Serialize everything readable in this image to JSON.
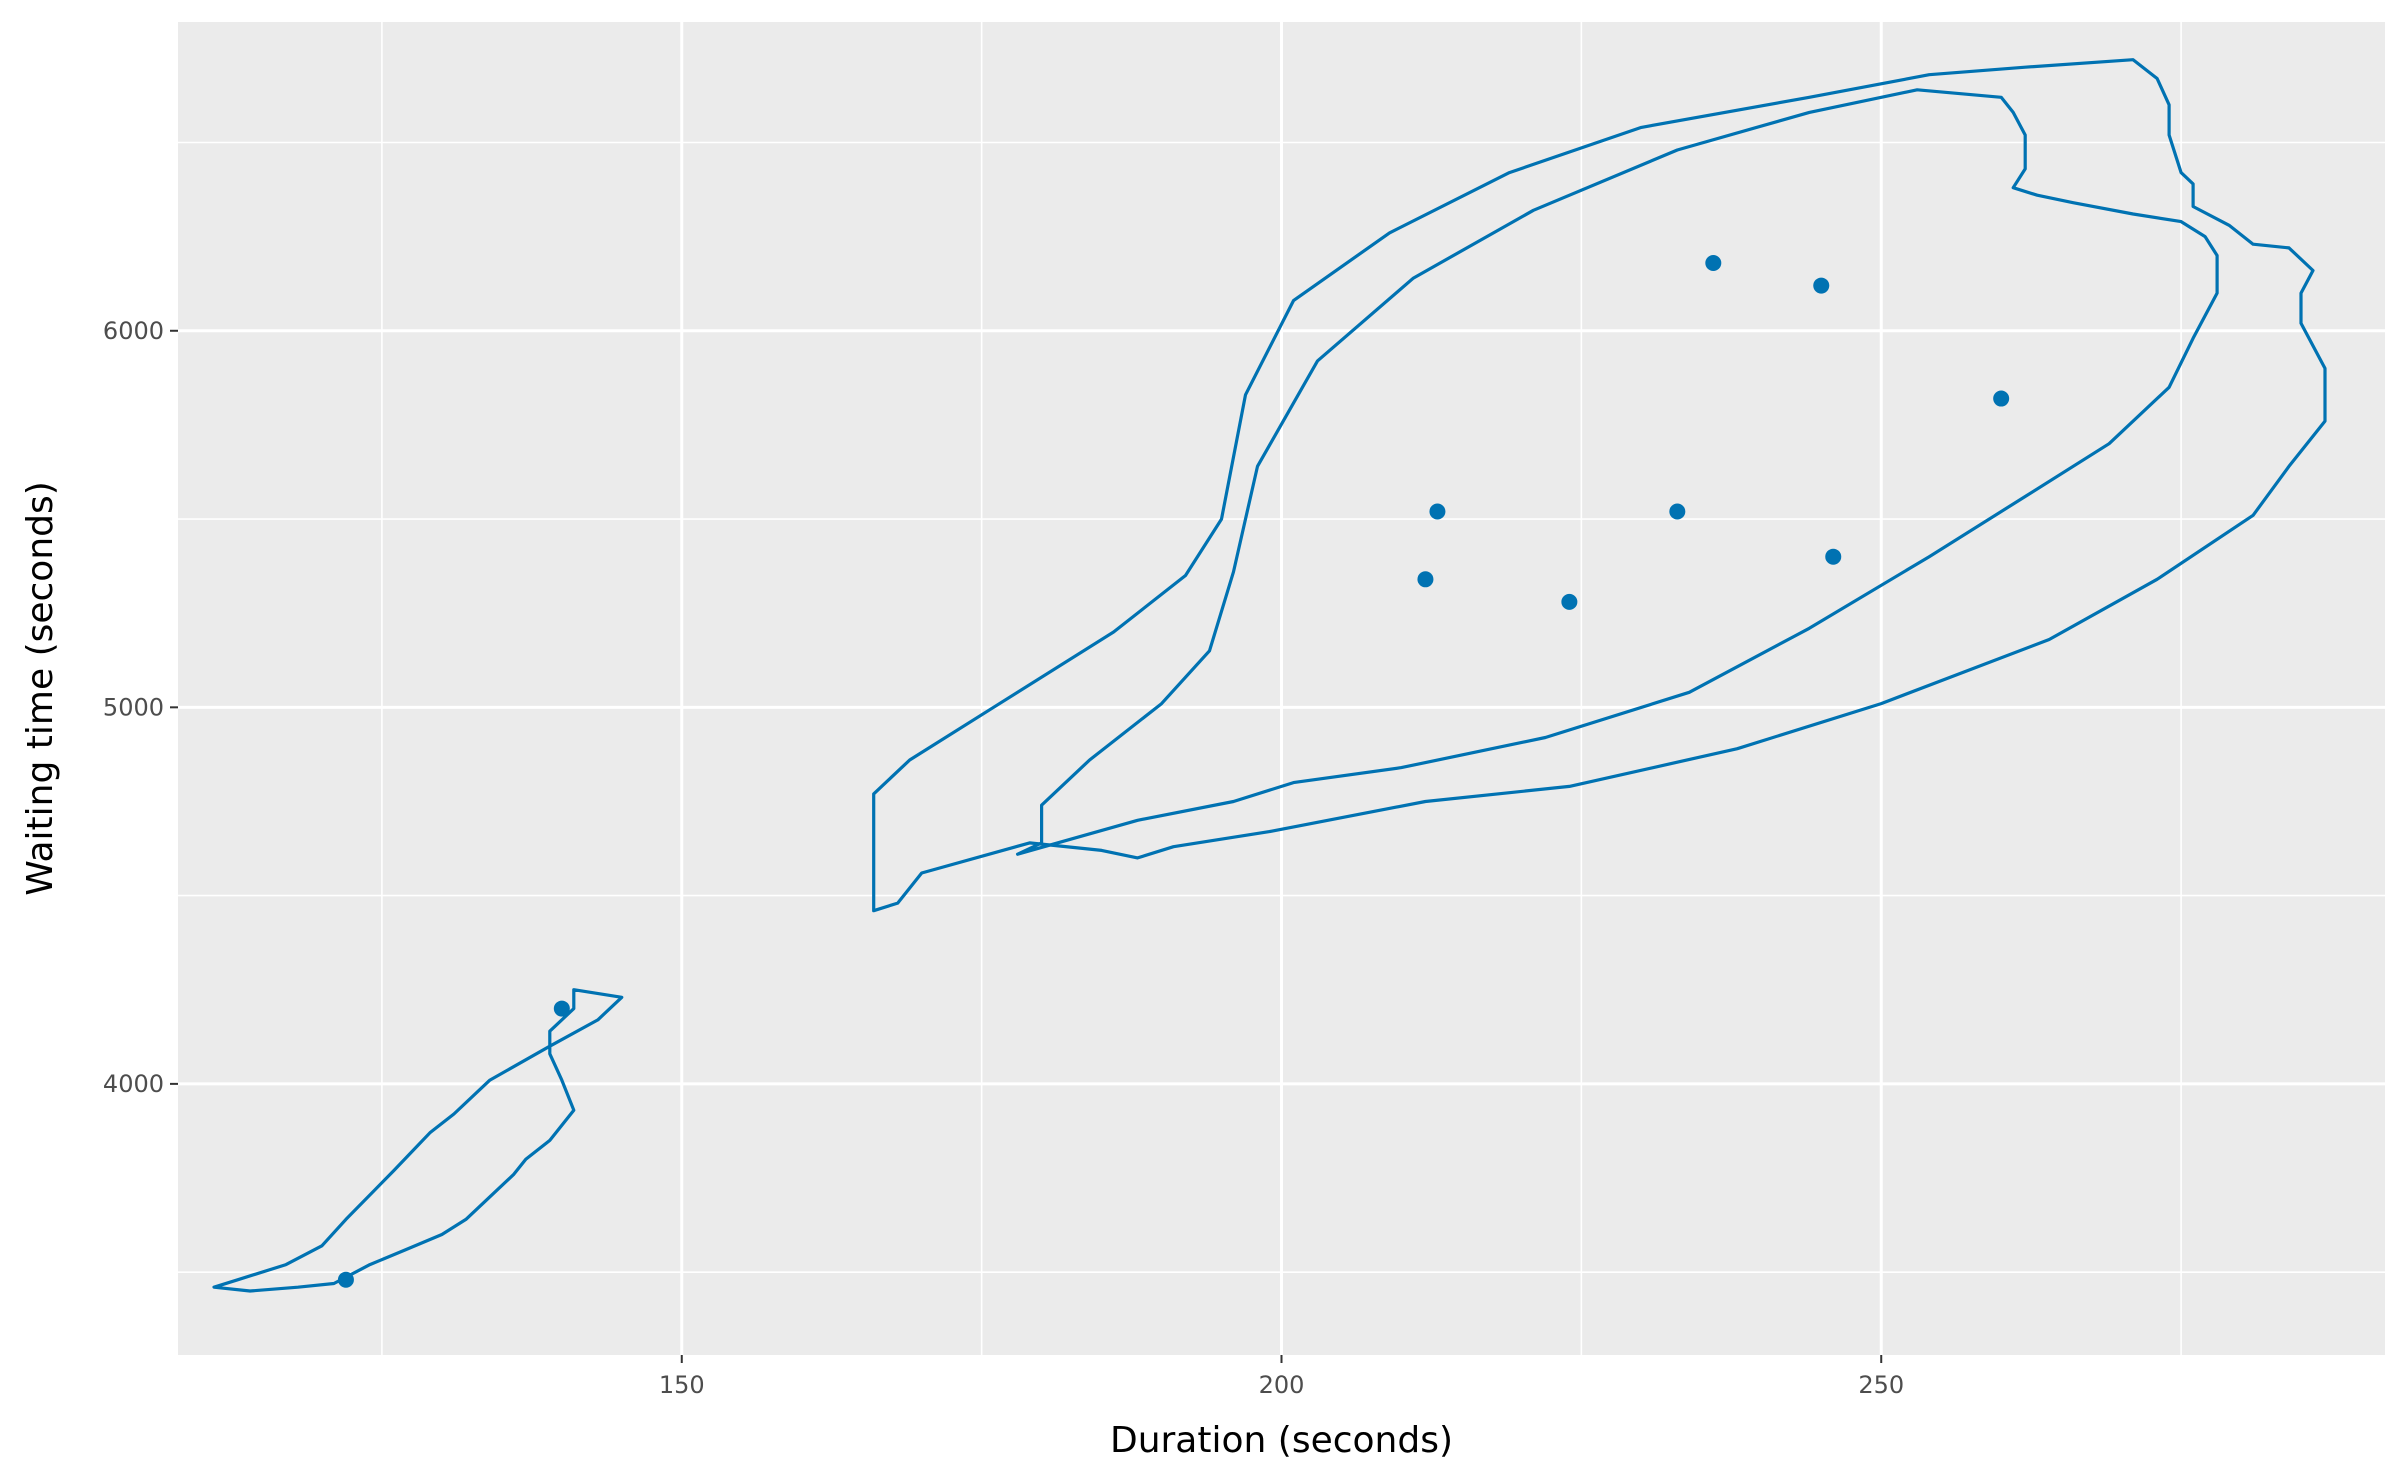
{
  "chart_data": {
    "type": "scatter",
    "subtype": "2d-density-contour",
    "xlabel": "Duration (seconds)",
    "ylabel": "Waiting time (seconds)",
    "xlim": [
      108,
      292
    ],
    "ylim": [
      3280,
      6820
    ],
    "x_ticks": [
      150,
      200,
      250
    ],
    "y_ticks": [
      4000,
      5000,
      6000
    ],
    "x_minor": [
      125,
      175,
      225,
      275
    ],
    "y_minor": [
      3500,
      4500,
      5500,
      6500
    ],
    "grid": true,
    "panel_color": "#ebebeb",
    "accent_color": "#0072b2",
    "points": [
      {
        "x": 122,
        "y": 3480
      },
      {
        "x": 140,
        "y": 4200
      },
      {
        "x": 212,
        "y": 5340
      },
      {
        "x": 213,
        "y": 5520
      },
      {
        "x": 224,
        "y": 5280
      },
      {
        "x": 233,
        "y": 5520
      },
      {
        "x": 236,
        "y": 6180
      },
      {
        "x": 245,
        "y": 6120
      },
      {
        "x": 246,
        "y": 5400
      },
      {
        "x": 260,
        "y": 5820
      }
    ],
    "contours": [
      [
        [
          141,
          4250
        ],
        [
          145,
          4230
        ],
        [
          143,
          4170
        ],
        [
          139,
          4100
        ],
        [
          134,
          4010
        ],
        [
          131,
          3920
        ],
        [
          129,
          3870
        ],
        [
          126,
          3770
        ],
        [
          122,
          3640
        ],
        [
          120,
          3570
        ],
        [
          117,
          3520
        ],
        [
          113,
          3480
        ],
        [
          111,
          3460
        ],
        [
          114,
          3450
        ],
        [
          118,
          3460
        ],
        [
          121,
          3470
        ],
        [
          124,
          3520
        ],
        [
          127,
          3560
        ],
        [
          130,
          3600
        ],
        [
          132,
          3640
        ],
        [
          134,
          3700
        ],
        [
          136,
          3760
        ],
        [
          137,
          3800
        ],
        [
          139,
          3850
        ],
        [
          141,
          3930
        ],
        [
          140,
          4010
        ],
        [
          139,
          4080
        ],
        [
          139,
          4140
        ],
        [
          141,
          4200
        ],
        [
          141,
          4250
        ]
      ],
      [
        [
          166,
          4460
        ],
        [
          168,
          4480
        ],
        [
          170,
          4560
        ],
        [
          179,
          4640
        ],
        [
          185,
          4620
        ],
        [
          188,
          4600
        ],
        [
          191,
          4630
        ],
        [
          199,
          4670
        ],
        [
          212,
          4750
        ],
        [
          224,
          4790
        ],
        [
          238,
          4890
        ],
        [
          250,
          5010
        ],
        [
          264,
          5180
        ],
        [
          273,
          5340
        ],
        [
          281,
          5510
        ],
        [
          284,
          5640
        ],
        [
          287,
          5760
        ],
        [
          287,
          5900
        ],
        [
          285,
          6020
        ],
        [
          285,
          6100
        ],
        [
          286,
          6160
        ],
        [
          284,
          6220
        ],
        [
          281,
          6230
        ],
        [
          279,
          6280
        ],
        [
          276,
          6330
        ],
        [
          276,
          6390
        ],
        [
          275,
          6420
        ],
        [
          274,
          6520
        ],
        [
          274,
          6600
        ],
        [
          273,
          6670
        ],
        [
          271,
          6720
        ],
        [
          262,
          6700
        ],
        [
          254,
          6680
        ],
        [
          244,
          6620
        ],
        [
          230,
          6540
        ],
        [
          219,
          6420
        ],
        [
          209,
          6260
        ],
        [
          201,
          6080
        ],
        [
          197,
          5830
        ],
        [
          195,
          5500
        ],
        [
          192,
          5350
        ],
        [
          186,
          5200
        ],
        [
          176,
          5000
        ],
        [
          169,
          4860
        ],
        [
          166,
          4770
        ],
        [
          166,
          4600
        ],
        [
          166,
          4460
        ]
      ],
      [
        [
          180,
          4640
        ],
        [
          178,
          4610
        ],
        [
          188,
          4700
        ],
        [
          196,
          4750
        ],
        [
          201,
          4800
        ],
        [
          210,
          4840
        ],
        [
          222,
          4920
        ],
        [
          234,
          5040
        ],
        [
          244,
          5210
        ],
        [
          254,
          5400
        ],
        [
          262,
          5560
        ],
        [
          269,
          5700
        ],
        [
          274,
          5850
        ],
        [
          276,
          5980
        ],
        [
          278,
          6100
        ],
        [
          278,
          6200
        ],
        [
          277,
          6250
        ],
        [
          275,
          6290
        ],
        [
          271,
          6310
        ],
        [
          266,
          6340
        ],
        [
          263,
          6360
        ],
        [
          261,
          6380
        ],
        [
          262,
          6430
        ],
        [
          262,
          6520
        ],
        [
          261,
          6580
        ],
        [
          260,
          6620
        ],
        [
          253,
          6640
        ],
        [
          244,
          6580
        ],
        [
          233,
          6480
        ],
        [
          221,
          6320
        ],
        [
          211,
          6140
        ],
        [
          203,
          5920
        ],
        [
          198,
          5640
        ],
        [
          196,
          5360
        ],
        [
          194,
          5150
        ],
        [
          190,
          5010
        ],
        [
          184,
          4860
        ],
        [
          180,
          4740
        ],
        [
          180,
          4640
        ]
      ]
    ]
  }
}
